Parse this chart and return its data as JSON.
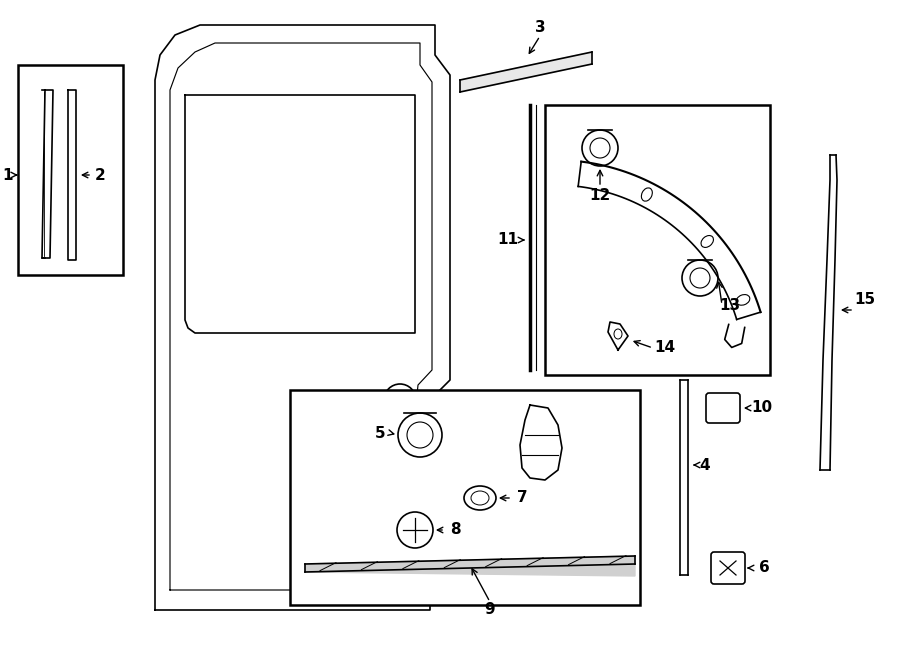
{
  "bg_color": "#ffffff",
  "line_color": "#000000",
  "figw": 9.0,
  "figh": 6.61,
  "dpi": 100
}
